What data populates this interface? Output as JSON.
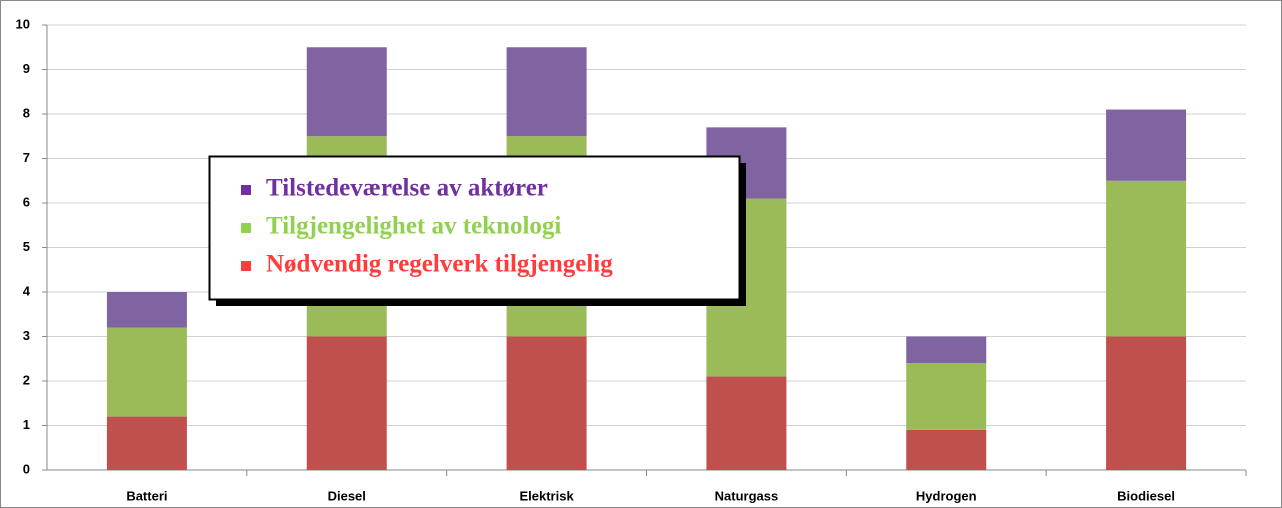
{
  "chart_data": {
    "type": "stacked_bar",
    "categories": [
      "Batteri",
      "Diesel",
      "Elektrisk",
      "Naturgass",
      "Hydrogen",
      "Biodiesel"
    ],
    "series": [
      {
        "name": "Nødvendig regelverk tilgjengelig",
        "color": "#c0504d",
        "legend_color": "#ff3b3b",
        "values": [
          1.2,
          3,
          3,
          2.1,
          0.9,
          3
        ]
      },
      {
        "name": "Tilgjengelighet av teknologi",
        "color": "#9bbb59",
        "legend_color": "#92d050",
        "values": [
          2.0,
          4.5,
          4.5,
          4.0,
          1.5,
          3.5
        ]
      },
      {
        "name": "Tilstedeværelse av aktører",
        "color": "#8064a2",
        "legend_color": "#7030a0",
        "values": [
          0.8,
          2,
          2,
          1.6,
          0.6,
          1.6
        ]
      }
    ],
    "ylim": [
      0,
      10
    ],
    "yticks": [
      0,
      1,
      2,
      3,
      4,
      5,
      6,
      7,
      8,
      9,
      10
    ],
    "grid": true
  }
}
